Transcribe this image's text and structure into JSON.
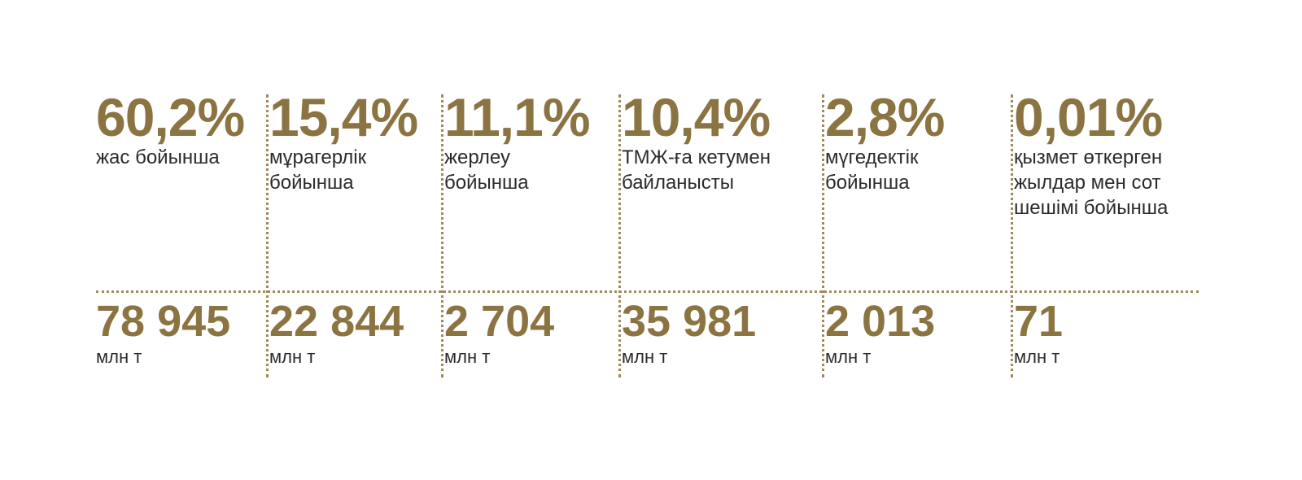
{
  "items": [
    {
      "percent": "60,2%",
      "label": [
        "жас бойынша"
      ],
      "amount": "78 945",
      "unit": "млн т"
    },
    {
      "percent": "15,4%",
      "label": [
        "мұрагерлік",
        "бойынша"
      ],
      "amount": "22 844",
      "unit": "млн т"
    },
    {
      "percent": "11,1%",
      "label": [
        "жерлеу",
        "бойынша"
      ],
      "amount": "2 704",
      "unit": "млн т"
    },
    {
      "percent": "10,4%",
      "label": [
        "ТМЖ-ға кетумен",
        "байланысты"
      ],
      "amount": "35 981",
      "unit": "млн т"
    },
    {
      "percent": "2,8%",
      "label": [
        "мүгедектік",
        "бойынша"
      ],
      "amount": "2 013",
      "unit": "млн т"
    },
    {
      "percent": "0,01%",
      "label": [
        "қызмет өткерген",
        "жылдар мен сот",
        "шешімі бойынша"
      ],
      "amount": "71",
      "unit": "млн т"
    }
  ],
  "colors": {
    "accent": "#8b7442",
    "text": "#2b2b2b",
    "divider": "#a08a5a"
  }
}
